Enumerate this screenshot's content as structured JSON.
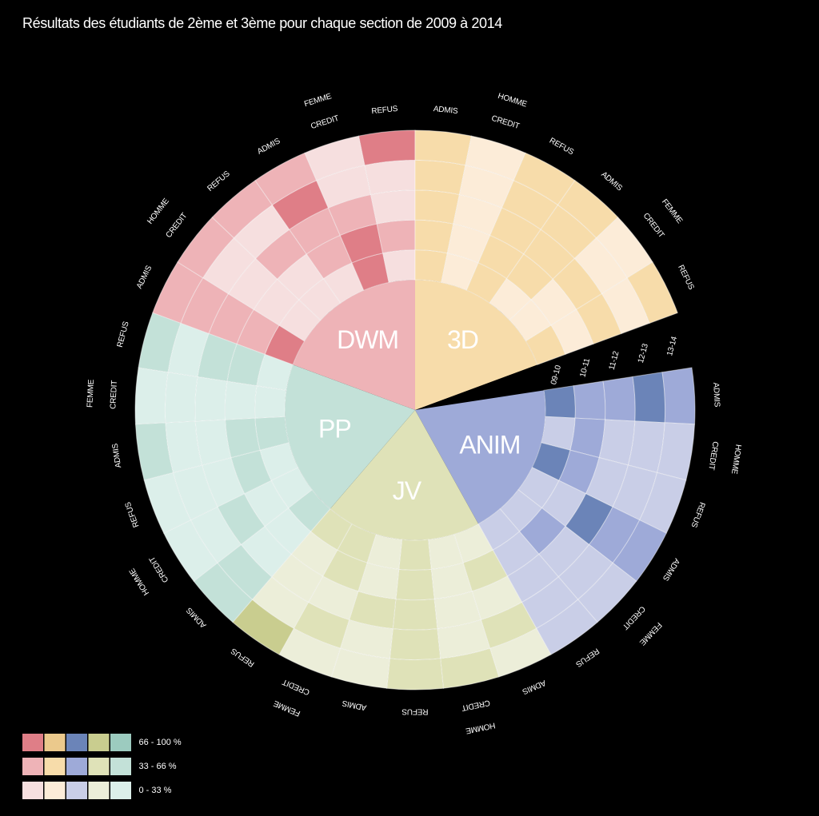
{
  "chart_data": {
    "type": "radial-heatmap",
    "title": "Résultats des étudiants de 2ème et 3ème pour chaque section de 2009 à 2014",
    "rings": [
      "09-10",
      "10-11",
      "11-12",
      "12-13",
      "13-14"
    ],
    "groups": [
      "HOMME",
      "FEMME"
    ],
    "columns": [
      "ADMIS",
      "CREDIT",
      "REFUS"
    ],
    "levels": [
      "0 - 33 %",
      "33 - 66 %",
      "66 - 100 %"
    ],
    "sections": [
      {
        "name": "DWM",
        "colors": [
          "#f6dfdf",
          "#eeb3b7",
          "#df7e87"
        ],
        "values": [
          [
            2,
            1,
            1,
            1,
            1
          ],
          [
            0,
            0,
            0,
            0,
            1
          ],
          [
            0,
            0,
            1,
            0,
            1
          ],
          [
            0,
            1,
            1,
            2,
            1
          ],
          [
            2,
            2,
            1,
            0,
            0
          ],
          [
            0,
            1,
            0,
            0,
            2
          ]
        ]
      },
      {
        "name": "3D",
        "colors": [
          "#fcecd8",
          "#f7dcaa",
          "#ebc98c"
        ],
        "values": [
          [
            1,
            1,
            1,
            1,
            1
          ],
          [
            0,
            0,
            0,
            0,
            0
          ],
          [
            1,
            1,
            1,
            1,
            1
          ],
          [
            0,
            1,
            1,
            1,
            1
          ],
          [
            0,
            0,
            1,
            0,
            0
          ],
          [
            1,
            0,
            1,
            0,
            1
          ]
        ]
      },
      {
        "name": "ANIM",
        "colors": [
          "#c9cee7",
          "#9eaad8",
          "#6b84b8"
        ],
        "values": [
          [
            2,
            1,
            1,
            2,
            1
          ],
          [
            0,
            1,
            0,
            0,
            0
          ],
          [
            2,
            1,
            0,
            0,
            0
          ],
          [
            0,
            0,
            2,
            1,
            1
          ],
          [
            0,
            1,
            0,
            0,
            0
          ],
          [
            0,
            0,
            0,
            0,
            0
          ]
        ]
      },
      {
        "name": "JV",
        "colors": [
          "#eceed9",
          "#dfe2b8",
          "#c9cd8f"
        ],
        "values": [
          [
            0,
            1,
            0,
            1,
            0
          ],
          [
            0,
            0,
            0,
            0,
            1
          ],
          [
            1,
            1,
            1,
            1,
            1
          ],
          [
            0,
            0,
            1,
            0,
            0
          ],
          [
            1,
            1,
            0,
            1,
            0
          ],
          [
            1,
            0,
            0,
            0,
            2
          ]
        ]
      },
      {
        "name": "PP",
        "colors": [
          "#dcefea",
          "#c3e1d8",
          "#9ccbbf"
        ],
        "values": [
          [
            1,
            0,
            0,
            1,
            1
          ],
          [
            0,
            0,
            1,
            0,
            0
          ],
          [
            0,
            1,
            0,
            0,
            0
          ],
          [
            1,
            1,
            0,
            0,
            1
          ],
          [
            0,
            0,
            0,
            0,
            0
          ],
          [
            0,
            1,
            1,
            0,
            1
          ]
        ]
      }
    ]
  }
}
